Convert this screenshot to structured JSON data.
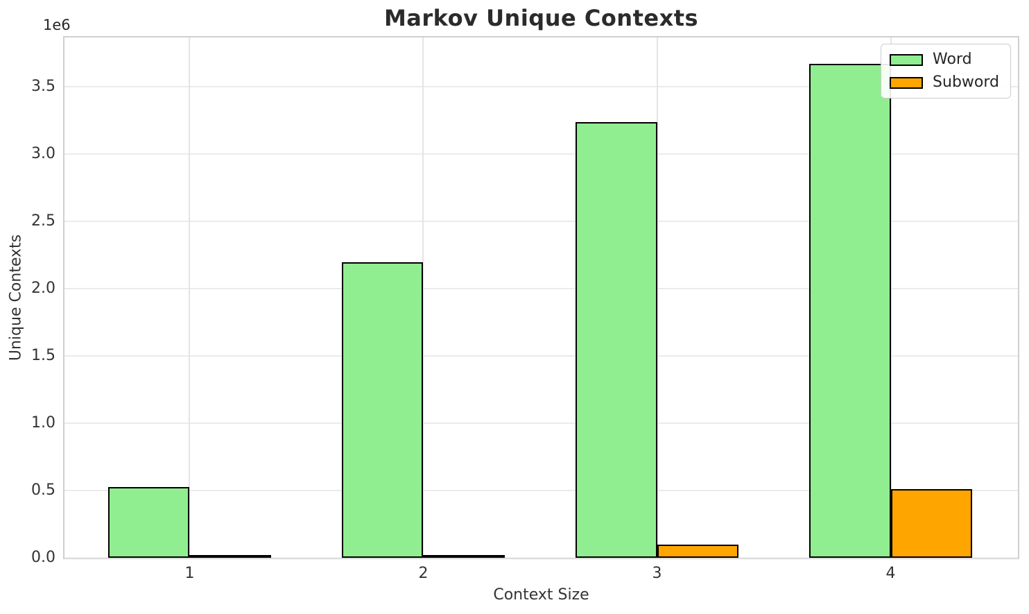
{
  "figure": {
    "background": "#FFFFFF"
  },
  "chart_data": {
    "type": "bar",
    "title": "Markov Unique Contexts",
    "xlabel": "Context Size",
    "ylabel": "Unique Contexts",
    "y_offset_label": "1e6",
    "categories": [
      "1",
      "2",
      "3",
      "4"
    ],
    "series": [
      {
        "name": "Word",
        "color": "#90EE90",
        "values": [
          525000,
          2195000,
          3240000,
          3670000
        ]
      },
      {
        "name": "Subword",
        "color": "#FFA500",
        "values": [
          1500,
          15000,
          100000,
          510000
        ]
      }
    ],
    "bar_width": 0.35,
    "edge_color": "#000000",
    "ytick_values": [
      0,
      500000,
      1000000,
      1500000,
      2000000,
      2500000,
      3000000,
      3500000
    ],
    "ytick_labels": [
      "0.0",
      "0.5",
      "1.0",
      "1.5",
      "2.0",
      "2.5",
      "3.0",
      "3.5"
    ],
    "ylim": [
      0,
      3867000
    ],
    "xlim": [
      0.4645,
      4.5444
    ],
    "grid": true,
    "legend_position": "upper right"
  },
  "colors": {
    "grid_h": "#EBEBEB",
    "grid_v": "#E4E4E4",
    "spine": "#CFCFCF",
    "text": "#333333",
    "title_text": "#2B2B2B"
  }
}
